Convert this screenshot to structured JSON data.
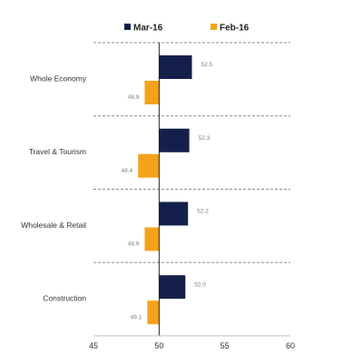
{
  "chart_data": {
    "type": "bar",
    "orientation": "horizontal",
    "categories": [
      "Whole Economy",
      "Travel & Tourism",
      "Wholesale & Retail",
      "Construction"
    ],
    "series": [
      {
        "name": "Mar-16",
        "values": [
          52.5,
          52.3,
          52.2,
          52.0
        ],
        "color": "#14204a"
      },
      {
        "name": "Feb-16",
        "values": [
          48.9,
          48.4,
          48.9,
          49.1
        ],
        "color": "#f5a21b"
      }
    ],
    "data_labels": [
      [
        "52.5",
        "52.3",
        "52.2",
        "52.0"
      ],
      [
        "48.9",
        "48.4",
        "48.9",
        "49.1"
      ]
    ],
    "xlim": [
      45,
      60
    ],
    "x_ticks": [
      "45",
      "50",
      "55",
      "60"
    ],
    "baseline": 50,
    "legend_position": "top",
    "grid": "dashed category separators"
  }
}
